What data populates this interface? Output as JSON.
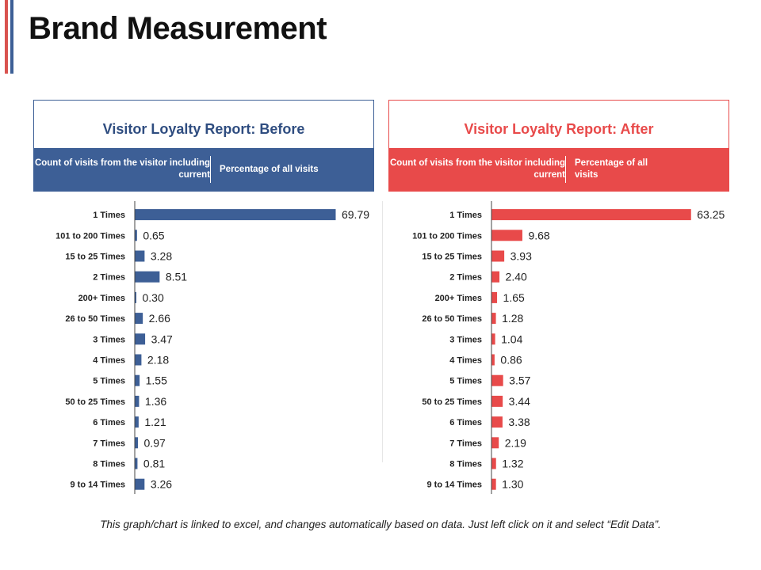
{
  "page": {
    "title": "Brand Measurement",
    "footer_note": "This graph/chart is linked to excel, and changes automatically based on data. Just left click on it and select “Edit Data”."
  },
  "colors": {
    "before": "#3d5f96",
    "after": "#e84a4a",
    "accent_red": "#d9534f",
    "accent_blue": "#3d5f96",
    "text": "#222222"
  },
  "panels": [
    {
      "title": "Visitor Loyalty Report: Before",
      "col1_header": "Count of visits from the visitor including current",
      "col2_header": "Percentage of all visits"
    },
    {
      "title": "Visitor Loyalty Report: After",
      "col1_header": "Count of visits from the visitor including current",
      "col2_header": "Percentage of all visits"
    }
  ],
  "chart_data": [
    {
      "type": "bar",
      "orientation": "horizontal",
      "title": "Visitor Loyalty Report: Before",
      "categories": [
        "1 Times",
        "101 to 200 Times",
        "15 to 25 Times",
        "2 Times",
        "200+ Times",
        "26 to 50 Times",
        "3 Times",
        "4 Times",
        "5 Times",
        "50 to 25 Times",
        "6 Times",
        "7 Times",
        "8 Times",
        "9 to 14 Times"
      ],
      "values": [
        69.79,
        0.65,
        3.28,
        8.51,
        0.3,
        2.66,
        3.47,
        2.18,
        1.55,
        1.36,
        1.21,
        0.97,
        0.81,
        3.26
      ],
      "value_labels": [
        "69.79",
        "0.65",
        "3.28",
        "8.51",
        "0.30",
        "2.66",
        "3.47",
        "2.18",
        "1.55",
        "1.36",
        "1.21",
        "0.97",
        "0.81",
        "3.26"
      ],
      "xlim": [
        0,
        80
      ],
      "grid": false,
      "legend": "none"
    },
    {
      "type": "bar",
      "orientation": "horizontal",
      "title": "Visitor Loyalty Report: After",
      "categories": [
        "1 Times",
        "101 to 200 Times",
        "15 to 25 Times",
        "2 Times",
        "200+ Times",
        "26 to 50 Times",
        "3 Times",
        "4 Times",
        "5 Times",
        "50 to 25 Times",
        "6 Times",
        "7 Times",
        "8 Times",
        "9 to 14 Times"
      ],
      "values": [
        63.25,
        9.68,
        3.93,
        2.4,
        1.65,
        1.28,
        1.04,
        0.86,
        3.57,
        3.44,
        3.38,
        2.19,
        1.32,
        1.3
      ],
      "value_labels": [
        "63.25",
        "9.68",
        "3.93",
        "2.40",
        "1.65",
        "1.28",
        "1.04",
        "0.86",
        "3.57",
        "3.44",
        "3.38",
        "2.19",
        "1.32",
        "1.30"
      ],
      "xlim": [
        0,
        73
      ],
      "grid": false,
      "legend": "none"
    }
  ]
}
